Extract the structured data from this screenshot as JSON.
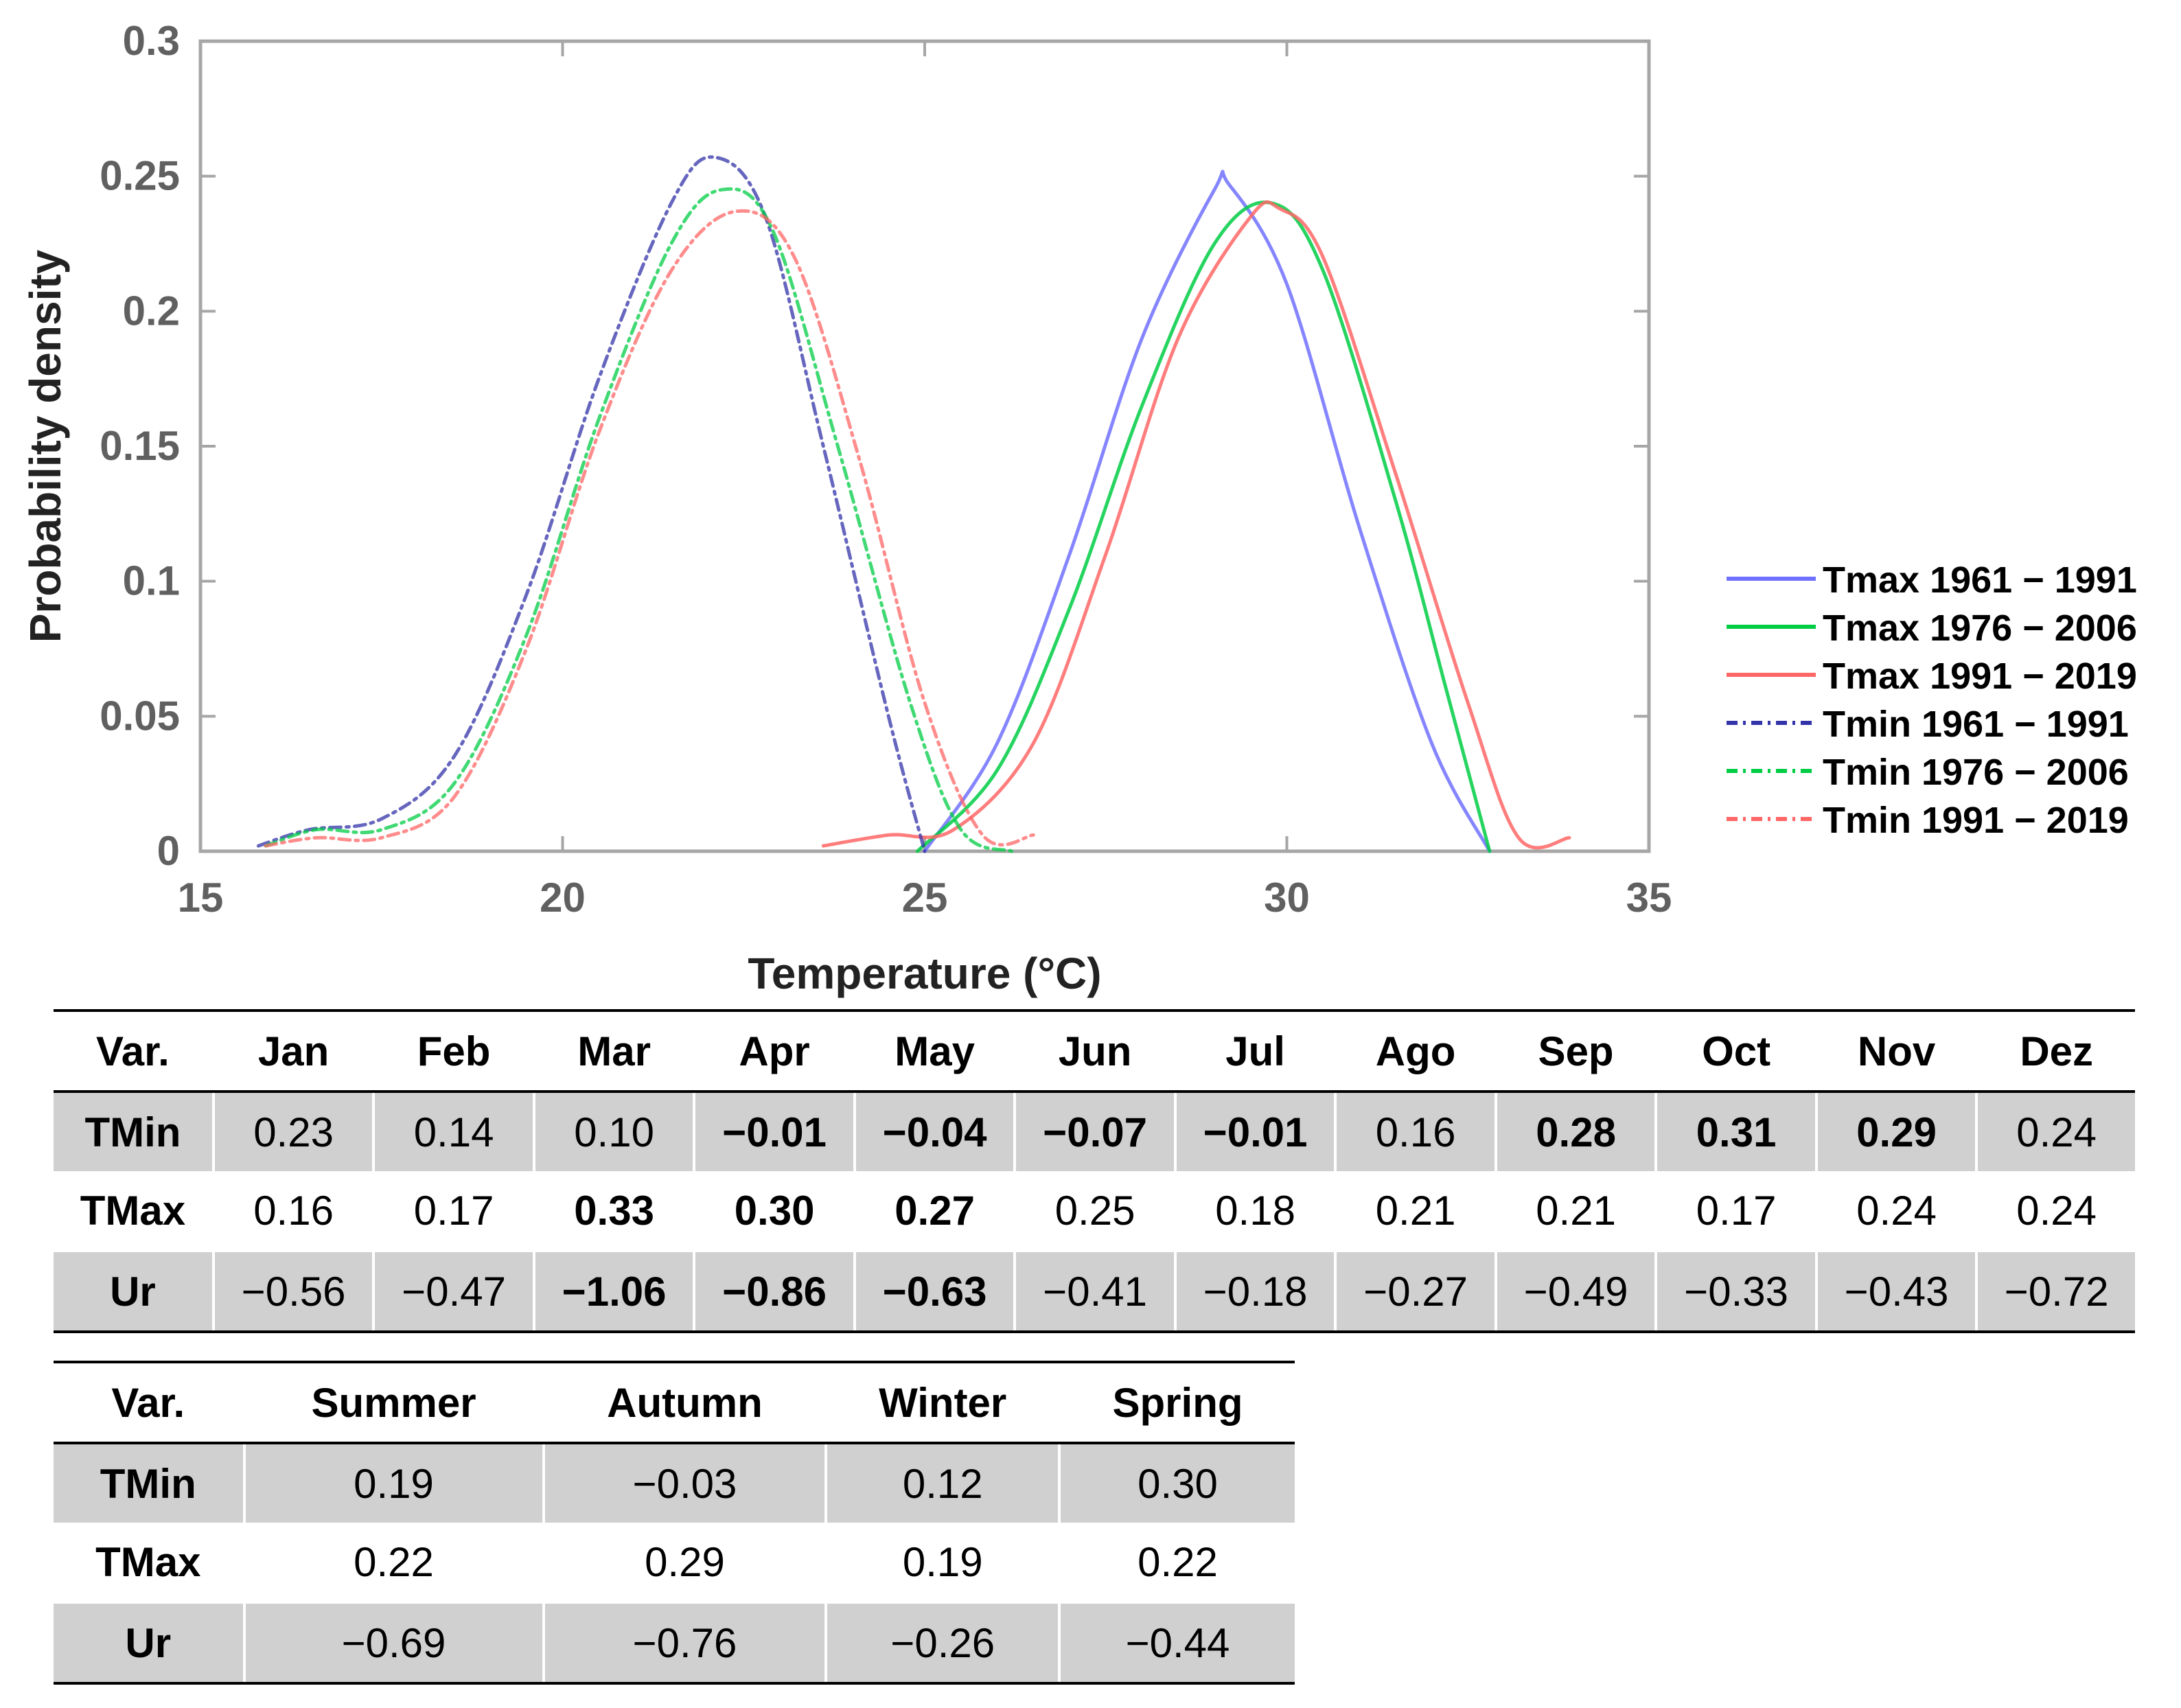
{
  "chart_data": {
    "type": "line",
    "title": "",
    "xlabel": "Temperature (°C)",
    "ylabel": "Probability density",
    "xlim": [
      15,
      35
    ],
    "ylim": [
      0,
      0.3
    ],
    "xticks": [
      "15",
      "20",
      "25",
      "30",
      "35"
    ],
    "yticks": [
      "0",
      "0.05",
      "0.1",
      "0.15",
      "0.2",
      "0.25",
      "0.3"
    ],
    "legend_position": "right",
    "series": [
      {
        "name": "Tmax 1961 − 1991",
        "color": "#7070ff",
        "style": "solid",
        "x": [
          25.0,
          26.0,
          27.0,
          28.0,
          29.0,
          29.2,
          30.0,
          31.0,
          32.0,
          32.8
        ],
        "y": [
          0.0,
          0.04,
          0.11,
          0.19,
          0.245,
          0.247,
          0.21,
          0.12,
          0.04,
          0.0
        ]
      },
      {
        "name": "Tmax 1976 − 2006",
        "color": "#00cc44",
        "style": "solid",
        "x": [
          24.9,
          26.0,
          27.0,
          28.0,
          29.0,
          29.8,
          30.5,
          31.5,
          32.2,
          32.8
        ],
        "y": [
          0.0,
          0.03,
          0.09,
          0.165,
          0.225,
          0.24,
          0.215,
          0.13,
          0.06,
          0.0
        ]
      },
      {
        "name": "Tmax 1991 − 2019",
        "color": "#ff6666",
        "style": "solid",
        "x": [
          23.6,
          24.5,
          25.4,
          26.5,
          27.5,
          28.5,
          29.5,
          29.9,
          30.5,
          31.5,
          32.5,
          33.2,
          33.9
        ],
        "y": [
          0.002,
          0.006,
          0.008,
          0.04,
          0.11,
          0.19,
          0.235,
          0.238,
          0.22,
          0.14,
          0.055,
          0.005,
          0.005
        ]
      },
      {
        "name": "Tmin 1961 − 1991",
        "color": "#3333aa",
        "style": "dashdot",
        "x": [
          15.8,
          16.5,
          17.5,
          18.5,
          19.5,
          20.5,
          21.5,
          22.1,
          22.8,
          23.6,
          24.5,
          25.0
        ],
        "y": [
          0.002,
          0.008,
          0.012,
          0.035,
          0.095,
          0.175,
          0.24,
          0.257,
          0.235,
          0.15,
          0.05,
          0.0
        ]
      },
      {
        "name": "Tmin 1976 − 2006",
        "color": "#00cc44",
        "style": "dashdot",
        "x": [
          15.9,
          16.6,
          17.5,
          18.5,
          19.5,
          20.5,
          21.5,
          22.2,
          22.9,
          23.8,
          24.8,
          25.5,
          26.2
        ],
        "y": [
          0.002,
          0.008,
          0.008,
          0.025,
          0.08,
          0.16,
          0.225,
          0.245,
          0.23,
          0.15,
          0.055,
          0.008,
          0.0
        ]
      },
      {
        "name": "Tmin 1991 − 2019",
        "color": "#ff6666",
        "style": "dashdot",
        "x": [
          15.9,
          16.6,
          17.5,
          18.5,
          19.5,
          20.5,
          21.5,
          22.4,
          23.2,
          24.1,
          25.0,
          25.8,
          26.5
        ],
        "y": [
          0.002,
          0.005,
          0.005,
          0.02,
          0.075,
          0.155,
          0.215,
          0.237,
          0.22,
          0.145,
          0.055,
          0.006,
          0.006
        ]
      }
    ]
  },
  "monthly_table": {
    "headers": [
      "Var.",
      "Jan",
      "Feb",
      "Mar",
      "Apr",
      "May",
      "Jun",
      "Jul",
      "Ago",
      "Sep",
      "Oct",
      "Nov",
      "Dez"
    ],
    "rows": [
      {
        "label": "TMin",
        "values": [
          "0.23",
          "0.14",
          "0.10",
          "−0.01",
          "−0.04",
          "−0.07",
          "−0.01",
          "0.16",
          "0.28",
          "0.31",
          "0.29",
          "0.24"
        ]
      },
      {
        "label": "TMax",
        "values": [
          "0.16",
          "0.17",
          "0.33",
          "0.30",
          "0.27",
          "0.25",
          "0.18",
          "0.21",
          "0.21",
          "0.17",
          "0.24",
          "0.24"
        ]
      },
      {
        "label": "Ur",
        "values": [
          "−0.56",
          "−0.47",
          "−1.06",
          "−0.86",
          "−0.63",
          "−0.41",
          "−0.18",
          "−0.27",
          "−0.49",
          "−0.33",
          "−0.43",
          "−0.72"
        ]
      }
    ]
  },
  "seasonal_table": {
    "headers": [
      "Var.",
      "Summer",
      "Autumn",
      "Winter",
      "Spring"
    ],
    "rows": [
      {
        "label": "TMin",
        "values": [
          "0.19",
          "−0.03",
          "0.12",
          "0.30"
        ]
      },
      {
        "label": "TMax",
        "values": [
          "0.22",
          "0.29",
          "0.19",
          "0.22"
        ]
      },
      {
        "label": "Ur",
        "values": [
          "−0.69",
          "−0.76",
          "−0.26",
          "−0.44"
        ]
      }
    ]
  }
}
